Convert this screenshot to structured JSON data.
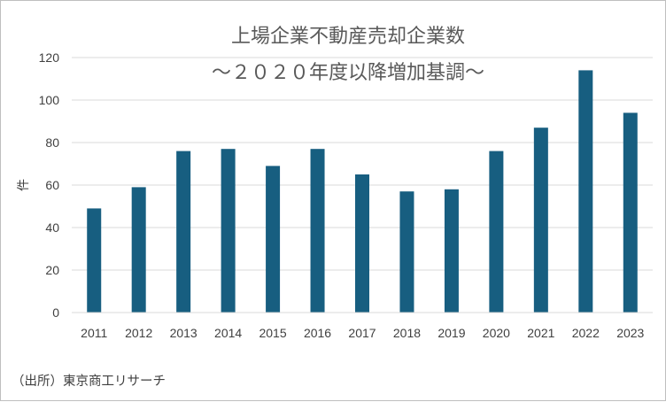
{
  "chart_data": {
    "type": "bar",
    "title": "上場企業不動産売却企業数",
    "subtitle": "～２０２０年度以降増加基調～",
    "xlabel": "",
    "ylabel": "件",
    "categories": [
      "2011",
      "2012",
      "2013",
      "2014",
      "2015",
      "2016",
      "2017",
      "2018",
      "2019",
      "2020",
      "2021",
      "2022",
      "2023"
    ],
    "values": [
      49,
      59,
      76,
      77,
      69,
      77,
      65,
      57,
      58,
      76,
      87,
      114,
      94
    ],
    "ylim": [
      0,
      120
    ],
    "yticks": [
      0,
      20,
      40,
      60,
      80,
      100,
      120
    ],
    "grid": true,
    "legend": "none",
    "bar_color": "#175e80",
    "grid_color": "#d9d9d9"
  },
  "source_note": "（出所）東京商工リサーチ"
}
